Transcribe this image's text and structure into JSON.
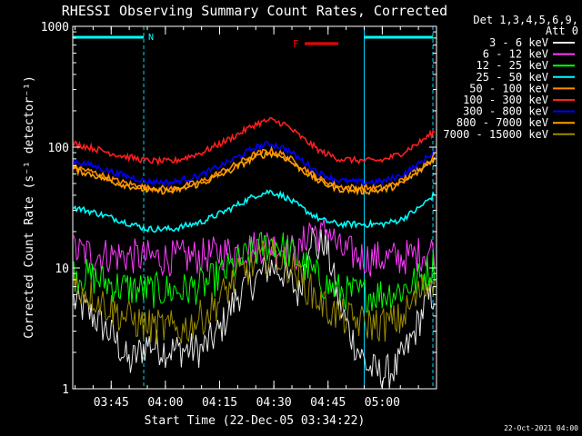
{
  "chart_data": {
    "type": "line",
    "title": "RHESSI Observing Summary Count Rates, Corrected",
    "xlabel": "Start Time (22-Dec-05 03:34:22)",
    "ylabel": "Corrected Count Rate (s⁻¹ detector⁻¹)",
    "y_scale": "log",
    "ylim": [
      1,
      1000
    ],
    "y_ticks": [
      {
        "value": 1,
        "label": "1"
      },
      {
        "value": 10,
        "label": "10"
      },
      {
        "value": 100,
        "label": "100"
      },
      {
        "value": 1000,
        "label": "1000"
      }
    ],
    "xlim": [
      "03:34:22",
      "05:15:00"
    ],
    "x_ticks": [
      "03:45",
      "04:00",
      "04:15",
      "04:30",
      "04:45",
      "05:00"
    ],
    "legend": {
      "placement": "right-outside",
      "header": [
        "Det 1,3,4,5,6,9,",
        "Att 0"
      ]
    },
    "series": [
      {
        "name": "3 - 6 keV",
        "color": "#e8e8e8",
        "points": [
          [
            "03:34",
            5.5
          ],
          [
            "03:40",
            4.0
          ],
          [
            "03:46",
            2.6
          ],
          [
            "03:50",
            1.6
          ],
          [
            "03:55",
            2.4
          ],
          [
            "04:00",
            2.1
          ],
          [
            "04:10",
            2.1
          ],
          [
            "04:15",
            3.0
          ],
          [
            "04:20",
            6.0
          ],
          [
            "04:25",
            8.0
          ],
          [
            "04:29",
            10.5
          ],
          [
            "04:33",
            9.0
          ],
          [
            "04:37",
            6.0
          ],
          [
            "04:40",
            20.0
          ],
          [
            "04:42",
            14.0
          ],
          [
            "04:44",
            17.0
          ],
          [
            "04:46",
            10.0
          ],
          [
            "04:48",
            5.0
          ],
          [
            "04:52",
            2.5
          ],
          [
            "04:56",
            1.5
          ],
          [
            "05:00",
            1.3
          ],
          [
            "05:04",
            1.5
          ],
          [
            "05:08",
            2.5
          ],
          [
            "05:12",
            5.0
          ],
          [
            "05:15",
            6.5
          ]
        ]
      },
      {
        "name": "6 - 12 keV",
        "color": "#ff3cff",
        "points": [
          [
            "03:34",
            14
          ],
          [
            "03:40",
            13
          ],
          [
            "03:50",
            12.5
          ],
          [
            "04:00",
            12
          ],
          [
            "04:10",
            12.5
          ],
          [
            "04:20",
            14
          ],
          [
            "04:28",
            15.5
          ],
          [
            "04:33",
            14.5
          ],
          [
            "04:37",
            13
          ],
          [
            "04:40",
            22
          ],
          [
            "04:43",
            18
          ],
          [
            "04:45",
            22
          ],
          [
            "04:48",
            14
          ],
          [
            "04:52",
            13
          ],
          [
            "04:56",
            12
          ],
          [
            "05:00",
            12
          ],
          [
            "05:05",
            12
          ],
          [
            "05:10",
            13
          ],
          [
            "05:15",
            14.5
          ]
        ]
      },
      {
        "name": "12 - 25 keV",
        "color": "#00ff00",
        "points": [
          [
            "03:34",
            9.0
          ],
          [
            "03:40",
            8.3
          ],
          [
            "03:47",
            7.0
          ],
          [
            "03:55",
            6.5
          ],
          [
            "04:05",
            6.5
          ],
          [
            "04:12",
            7.5
          ],
          [
            "04:20",
            11.0
          ],
          [
            "04:27",
            15.0
          ],
          [
            "04:30",
            16.5
          ],
          [
            "04:35",
            13.0
          ],
          [
            "04:40",
            9.5
          ],
          [
            "04:45",
            7.0
          ],
          [
            "04:50",
            6.2
          ],
          [
            "04:55",
            6.1
          ],
          [
            "05:00",
            6.1
          ],
          [
            "05:05",
            6.5
          ],
          [
            "05:10",
            8.0
          ],
          [
            "05:15",
            11.0
          ]
        ]
      },
      {
        "name": "25 - 50 keV",
        "color": "#00ffff",
        "points": [
          [
            "03:34",
            32
          ],
          [
            "03:40",
            29
          ],
          [
            "03:47",
            25
          ],
          [
            "03:55",
            21
          ],
          [
            "04:02",
            21
          ],
          [
            "04:10",
            24
          ],
          [
            "04:18",
            31
          ],
          [
            "04:25",
            40
          ],
          [
            "04:29",
            43
          ],
          [
            "04:33",
            39
          ],
          [
            "04:38",
            31
          ],
          [
            "04:43",
            25
          ],
          [
            "04:48",
            23
          ],
          [
            "04:55",
            23
          ],
          [
            "05:00",
            23
          ],
          [
            "05:05",
            25
          ],
          [
            "05:10",
            31
          ],
          [
            "05:15",
            42
          ]
        ]
      },
      {
        "name": "50 - 100 keV",
        "color": "#ff8c00",
        "points": [
          [
            "03:34",
            70
          ],
          [
            "03:40",
            62
          ],
          [
            "03:47",
            52
          ],
          [
            "03:55",
            46
          ],
          [
            "04:02",
            45
          ],
          [
            "04:10",
            52
          ],
          [
            "04:18",
            68
          ],
          [
            "04:25",
            88
          ],
          [
            "04:29",
            94
          ],
          [
            "04:33",
            86
          ],
          [
            "04:38",
            68
          ],
          [
            "04:43",
            54
          ],
          [
            "04:48",
            47
          ],
          [
            "04:55",
            46
          ],
          [
            "05:00",
            46
          ],
          [
            "05:05",
            52
          ],
          [
            "05:10",
            66
          ],
          [
            "05:15",
            88
          ]
        ]
      },
      {
        "name": "100 - 300 keV",
        "color": "#ff1e1e",
        "points": [
          [
            "03:34",
            108
          ],
          [
            "03:40",
            98
          ],
          [
            "03:47",
            86
          ],
          [
            "03:55",
            77
          ],
          [
            "04:02",
            76
          ],
          [
            "04:10",
            90
          ],
          [
            "04:18",
            118
          ],
          [
            "04:25",
            155
          ],
          [
            "04:29",
            168
          ],
          [
            "04:33",
            155
          ],
          [
            "04:38",
            118
          ],
          [
            "04:43",
            92
          ],
          [
            "04:48",
            80
          ],
          [
            "04:55",
            77
          ],
          [
            "05:00",
            78
          ],
          [
            "05:05",
            88
          ],
          [
            "05:10",
            108
          ],
          [
            "05:15",
            138
          ]
        ]
      },
      {
        "name": "300 - 800 keV",
        "color": "#0000ff",
        "points": [
          [
            "03:34",
            78
          ],
          [
            "03:40",
            70
          ],
          [
            "03:47",
            60
          ],
          [
            "03:55",
            52
          ],
          [
            "04:02",
            51
          ],
          [
            "04:10",
            59
          ],
          [
            "04:18",
            77
          ],
          [
            "04:25",
            100
          ],
          [
            "04:29",
            107
          ],
          [
            "04:33",
            98
          ],
          [
            "04:38",
            77
          ],
          [
            "04:43",
            60
          ],
          [
            "04:48",
            53
          ],
          [
            "04:55",
            51
          ],
          [
            "05:00",
            52
          ],
          [
            "05:05",
            58
          ],
          [
            "05:10",
            72
          ],
          [
            "05:15",
            95
          ]
        ]
      },
      {
        "name": "800 - 7000 keV",
        "color": "#ffa000",
        "points": [
          [
            "03:34",
            66
          ],
          [
            "03:40",
            59
          ],
          [
            "03:47",
            50
          ],
          [
            "03:55",
            44
          ],
          [
            "04:02",
            43
          ],
          [
            "04:10",
            50
          ],
          [
            "04:18",
            64
          ],
          [
            "04:25",
            83
          ],
          [
            "04:29",
            89
          ],
          [
            "04:33",
            82
          ],
          [
            "04:38",
            64
          ],
          [
            "04:43",
            51
          ],
          [
            "04:48",
            45
          ],
          [
            "04:55",
            43
          ],
          [
            "05:00",
            44
          ],
          [
            "05:05",
            49
          ],
          [
            "05:10",
            62
          ],
          [
            "05:15",
            84
          ]
        ]
      },
      {
        "name": "7000 - 15000 keV",
        "color": "#9c8c00",
        "points": [
          [
            "03:34",
            7.5
          ],
          [
            "03:40",
            5.8
          ],
          [
            "03:47",
            4.2
          ],
          [
            "03:55",
            3.3
          ],
          [
            "04:05",
            3.1
          ],
          [
            "04:12",
            4.3
          ],
          [
            "04:20",
            8.5
          ],
          [
            "04:27",
            12.0
          ],
          [
            "04:30",
            13.0
          ],
          [
            "04:35",
            10.0
          ],
          [
            "04:40",
            6.5
          ],
          [
            "04:45",
            4.5
          ],
          [
            "04:50",
            3.8
          ],
          [
            "04:55",
            3.5
          ],
          [
            "05:00",
            3.4
          ],
          [
            "05:05",
            3.7
          ],
          [
            "05:10",
            6.0
          ],
          [
            "05:15",
            9.0
          ]
        ]
      }
    ],
    "annotations": [
      {
        "label": "N",
        "color": "#00ffff"
      },
      {
        "label": "F",
        "color": "#ff0000"
      }
    ],
    "time_markers": [
      "03:34:22",
      "03:54:00",
      "04:55:00",
      "05:14:00"
    ],
    "footer": "22-Oct-2021 04:00"
  }
}
